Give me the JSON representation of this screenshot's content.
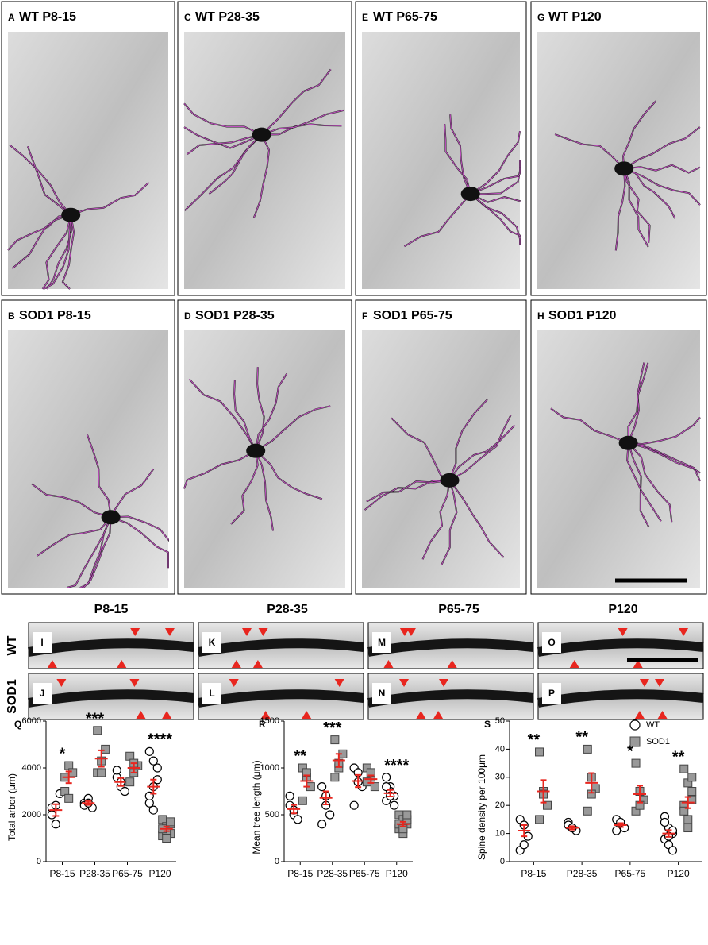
{
  "micrographs": [
    {
      "letter": "A",
      "label": "WT P8-15"
    },
    {
      "letter": "C",
      "label": "WT P28-35"
    },
    {
      "letter": "E",
      "label": "WT P65-75"
    },
    {
      "letter": "G",
      "label": "WT P120"
    },
    {
      "letter": "B",
      "label": "SOD1 P8-15"
    },
    {
      "letter": "D",
      "label": "SOD1 P28-35"
    },
    {
      "letter": "F",
      "label": "SOD1 P65-75"
    },
    {
      "letter": "H",
      "label": "SOD1 P120"
    }
  ],
  "column_labels": [
    "P8-15",
    "P28-35",
    "P65-75",
    "P120"
  ],
  "row_labels": [
    "WT",
    "SOD1"
  ],
  "dendrites": [
    "I",
    "K",
    "M",
    "O",
    "J",
    "L",
    "N",
    "P"
  ],
  "chart_data": [
    {
      "type": "strip",
      "panel": "Q",
      "y_label": "Total arbor (μm)",
      "categories": [
        "P8-15",
        "P28-35",
        "P65-75",
        "P120"
      ],
      "ylim": [
        0,
        6000
      ],
      "yticks": [
        0,
        2000,
        4000,
        6000
      ],
      "series": [
        {
          "color": "#ffffff",
          "marker": "circle",
          "values": [
            [
              2300,
              1600,
              2900,
              2000,
              2400
            ],
            [
              2500,
              2700,
              2300,
              2400,
              2500
            ],
            [
              3600,
              3200,
              3000,
              3900,
              3400
            ],
            [
              4700,
              4300,
              3500,
              2500,
              3200,
              4000,
              2800,
              2200
            ]
          ],
          "mean": [
            2200,
            2500,
            3400,
            3200
          ],
          "sem": [
            250,
            80,
            170,
            300
          ]
        },
        {
          "color": "#999999",
          "marker": "square",
          "values": [
            [
              3600,
              4100,
              3800,
              3000,
              2700
            ],
            [
              5600,
              4300,
              4800,
              3800,
              3800
            ],
            [
              4500,
              3800,
              4100,
              3400,
              4200
            ],
            [
              1800,
              1500,
              1200,
              1100,
              1300,
              1600,
              1400,
              1000,
              1700
            ]
          ],
          "mean": [
            3600,
            4400,
            4000,
            1400
          ],
          "sem": [
            250,
            350,
            200,
            100
          ]
        }
      ],
      "significance": [
        "*",
        "***",
        null,
        "****"
      ],
      "mean_color": "#e8261f"
    },
    {
      "type": "strip",
      "panel": "R",
      "y_label": "Mean tree length (μm)",
      "categories": [
        "P8-15",
        "P28-35",
        "P65-75",
        "P120"
      ],
      "ylim": [
        0,
        1500
      ],
      "yticks": [
        0,
        500,
        1000,
        1500
      ],
      "series": [
        {
          "color": "#ffffff",
          "marker": "circle",
          "values": [
            [
              600,
              500,
              450,
              700,
              550
            ],
            [
              800,
              700,
              500,
              400,
              600
            ],
            [
              1000,
              950,
              800,
              600,
              850
            ],
            [
              900,
              800,
              700,
              650,
              750,
              600,
              800,
              700
            ]
          ],
          "mean": [
            560,
            680,
            860,
            730
          ],
          "sem": [
            45,
            70,
            65,
            35
          ]
        },
        {
          "color": "#999999",
          "marker": "square",
          "values": [
            [
              1000,
              900,
              800,
              650,
              950
            ],
            [
              1300,
              1000,
              1150,
              900,
              1050
            ],
            [
              1000,
              900,
              800,
              850,
              950
            ],
            [
              500,
              450,
              400,
              350,
              300,
              450,
              400,
              350,
              500
            ]
          ],
          "mean": [
            860,
            1080,
            880,
            400
          ],
          "sem": [
            60,
            70,
            40,
            25
          ]
        }
      ],
      "significance": [
        "**",
        "***",
        null,
        "****"
      ],
      "mean_color": "#e8261f"
    },
    {
      "type": "strip",
      "panel": "S",
      "y_label": "Spine density per 100μm",
      "categories": [
        "P8-15",
        "P28-35",
        "P65-75",
        "P120"
      ],
      "ylim": [
        0,
        50
      ],
      "yticks": [
        0,
        10,
        20,
        30,
        40,
        50
      ],
      "series": [
        {
          "name": "WT",
          "color": "#ffffff",
          "marker": "circle",
          "values": [
            [
              15,
              13,
              9,
              4,
              6
            ],
            [
              14,
              12,
              11,
              13,
              12
            ],
            [
              15,
              13,
              12,
              11,
              14
            ],
            [
              16,
              12,
              10,
              8,
              6,
              11,
              14,
              9,
              4
            ]
          ],
          "mean": [
            11,
            12,
            13,
            10
          ],
          "sem": [
            2,
            0.6,
            0.7,
            1.2
          ]
        },
        {
          "name": "SOD1",
          "color": "#999999",
          "marker": "square",
          "values": [
            [
              39,
              25,
              20,
              15,
              24
            ],
            [
              40,
              30,
              26,
              18,
              24
            ],
            [
              35,
              25,
              22,
              18,
              20
            ],
            [
              33,
              28,
              25,
              20,
              15,
              22,
              18,
              12,
              30
            ]
          ],
          "mean": [
            25,
            28,
            24,
            21
          ],
          "sem": [
            4,
            3.5,
            3,
            2
          ]
        }
      ],
      "significance": [
        "**",
        "**",
        "*",
        "**"
      ],
      "mean_color": "#e8261f",
      "legend": "upper right"
    }
  ]
}
